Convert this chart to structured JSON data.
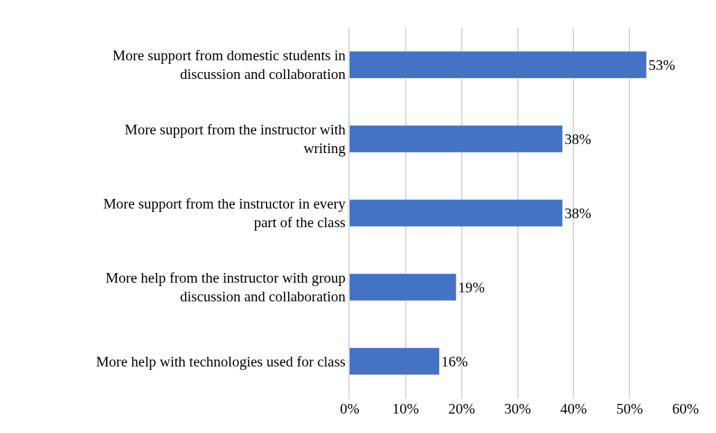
{
  "chart_data": {
    "type": "bar",
    "orientation": "horizontal",
    "categories": [
      "More support from domestic students in discussion and collaboration",
      "More support from the instructor with writing",
      "More support from the instructor in every part of the class",
      "More help from the instructor with group discussion and collaboration",
      "More help with technologies used for class"
    ],
    "values": [
      53,
      38,
      38,
      19,
      16
    ],
    "value_labels": [
      "53%",
      "38%",
      "38%",
      "19%",
      "16%"
    ],
    "color": "#4472c4",
    "xlim": [
      0,
      60
    ],
    "xticks": [
      {
        "value": 0,
        "label": "0%"
      },
      {
        "value": 10,
        "label": "10%"
      },
      {
        "value": 20,
        "label": "20%"
      },
      {
        "value": 30,
        "label": "30%"
      },
      {
        "value": 40,
        "label": "40%"
      },
      {
        "value": 50,
        "label": "50%"
      },
      {
        "value": 60,
        "label": "60%"
      }
    ],
    "grid": "x"
  }
}
